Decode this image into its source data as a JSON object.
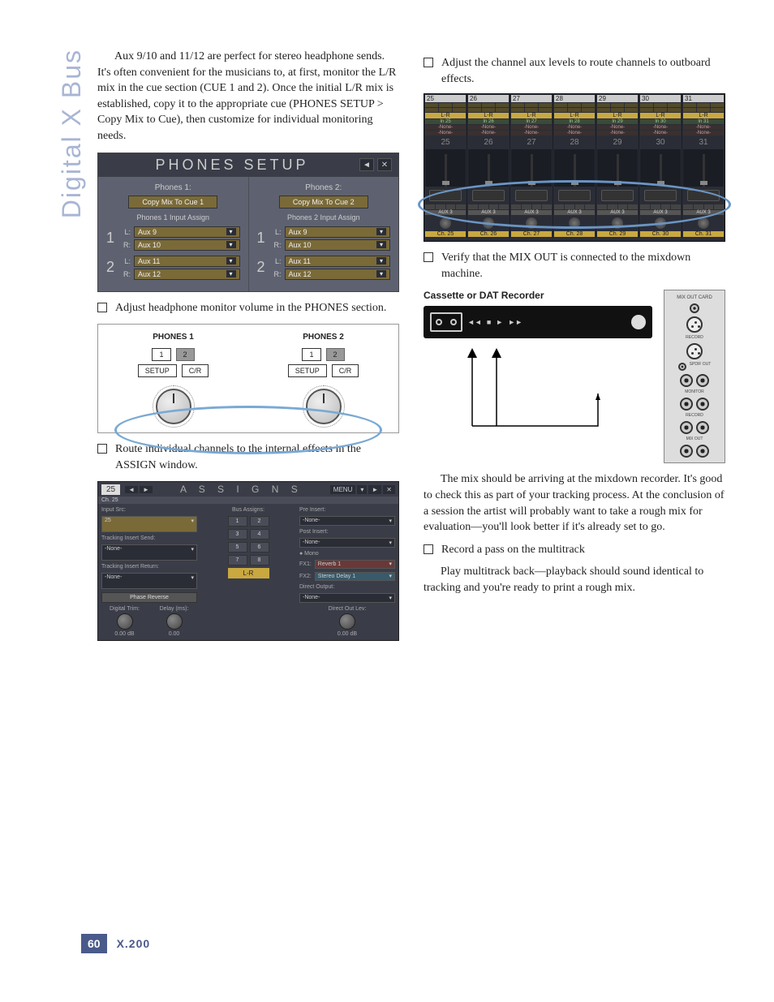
{
  "sidebar_label": "Digital X Bus",
  "page_number": "60",
  "model_label": "X.200",
  "col1": {
    "intro_para": "Aux 9/10 and 11/12 are perfect for stereo headphone sends. It's often convenient for the musicians to, at first, monitor the L/R mix in the cue section (CUE 1 and 2). Once the initial L/R mix is established, copy it to the appropriate cue (PHONES SETUP > Copy Mix to Cue), then customize for individual monitoring needs.",
    "phones_setup": {
      "title": "PHONES SETUP",
      "hdr_back": "◄",
      "hdr_close": "✕",
      "col1": {
        "label": "Phones 1:",
        "copy_btn": "Copy Mix To Cue 1",
        "assign_label": "Phones 1 Input Assign",
        "rows": [
          {
            "num": "1",
            "L": "Aux 9",
            "R": "Aux 10"
          },
          {
            "num": "2",
            "L": "Aux 11",
            "R": "Aux 12"
          }
        ]
      },
      "col2": {
        "label": "Phones 2:",
        "copy_btn": "Copy Mix To Cue 2",
        "assign_label": "Phones 2 Input Assign",
        "rows": [
          {
            "num": "1",
            "L": "Aux 9",
            "R": "Aux 10"
          },
          {
            "num": "2",
            "L": "Aux 11",
            "R": "Aux 12"
          }
        ]
      }
    },
    "bullet_phones_vol": "Adjust headphone monitor volume in the PHONES section.",
    "phones_diagram": {
      "titles": [
        "PHONES 1",
        "PHONES 2"
      ],
      "top_btns": [
        "1",
        "2"
      ],
      "bot_btns": [
        "SETUP",
        "C/R"
      ]
    },
    "bullet_route": "Route individual channels to the internal effects in the ASSIGN window.",
    "assigns": {
      "ch_tab": "25",
      "ch_sub": "Ch. 25",
      "title": "A S S I G N S",
      "menu": "MENU",
      "left": {
        "input_src": "Input Src:",
        "input_val": "25",
        "track_send": "Tracking Insert Send:",
        "track_send_val": "-None-",
        "track_ret": "Tracking Insert Return:",
        "track_ret_val": "-None-",
        "phase_btn": "Phase Reverse",
        "dig_trim": "Digital Trim:",
        "delay": "Delay (ms):",
        "dig_val": "0.00 dB",
        "delay_val": "0.00"
      },
      "mid": {
        "label": "Bus Assigns:",
        "cells": [
          "1",
          "2",
          "3",
          "4",
          "5",
          "6",
          "7",
          "8"
        ],
        "lr": "L-R"
      },
      "right": {
        "pre_insert": "Pre Insert:",
        "pre_val": "-None-",
        "post_insert": "Post Insert:",
        "post_val": "-None-",
        "mono": "● Mono",
        "fx1_lbl": "FX1:",
        "fx1_val": "Reverb 1",
        "fx2_lbl": "FX2:",
        "fx2_val": "Stereo Delay 1",
        "direct_lbl": "Direct Output:",
        "direct_val": "-None-",
        "direct_out_lev": "Direct Out Lev:",
        "direct_db": "0.00 dB"
      }
    }
  },
  "col2": {
    "bullet_aux": "Adjust the channel aux levels to route channels to outboard effects.",
    "mixer": {
      "channels": [
        25,
        26,
        27,
        28,
        29,
        30,
        31
      ],
      "in_labels": [
        "In 25",
        "In 26",
        "In 27",
        "In 28",
        "In 29",
        "In 30",
        "In 31"
      ],
      "none": "-None-",
      "aux_label": "AUX 3",
      "footers": [
        "Ch. 25",
        "Ch. 26",
        "Ch. 27",
        "Ch. 28",
        "Ch. 29",
        "Ch. 30",
        "Ch. 31"
      ],
      "lr": "L-R"
    },
    "bullet_verify": "Verify that the MIX OUT is connected to the mixdown machine.",
    "dat": {
      "title": "Cassette or DAT Recorder",
      "panel_title": "MIX OUT CARD",
      "record": "RECORD",
      "spdif": "SPDIF OUT",
      "monitor": "MONITOR",
      "record2": "RECORD",
      "mixout": "MIX OUT"
    },
    "para_mix": "The mix should be arriving at the mixdown recorder. It's good to check this as part of your tracking process. At the conclusion of a session the artist will probably want to take a rough mix for evaluation—you'll look better if it's already set to go.",
    "bullet_record": "Record a pass on the multitrack",
    "para_play": "Play multitrack back—playback should sound identical to tracking and you're ready to print a rough mix."
  }
}
